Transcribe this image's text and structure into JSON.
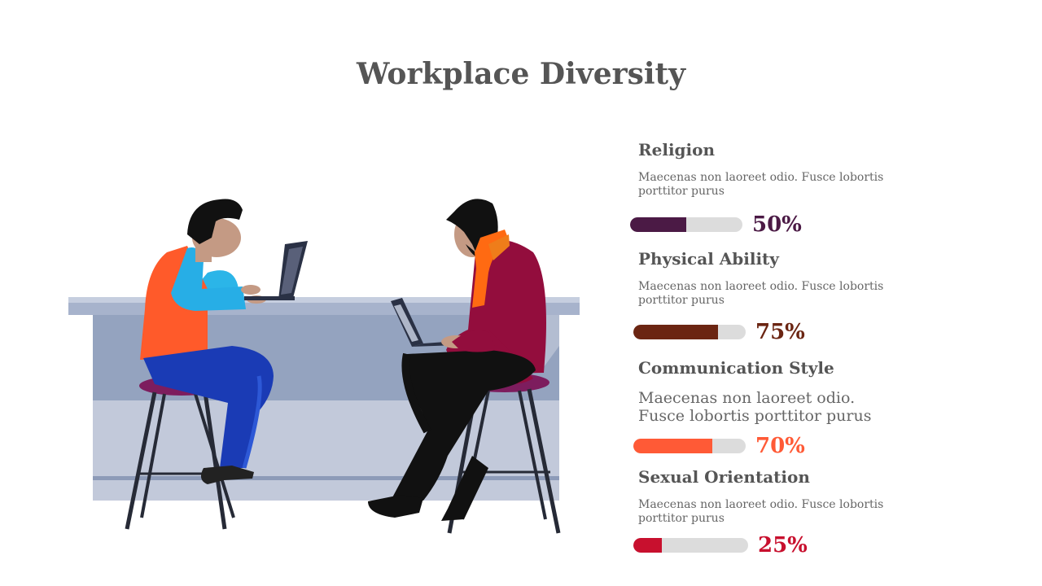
{
  "slide": {
    "title": "Workplace Diversity"
  },
  "items": [
    {
      "title": "Religion",
      "description": "Maecenas non laoreet odio. Fusce lobortis porttitor purus",
      "percent_label": "50%",
      "value": 0.5,
      "color": "#4b1a45"
    },
    {
      "title": "Physical Ability",
      "description": "Maecenas non laoreet odio. Fusce lobortis porttitor purus",
      "percent_label": "75%",
      "value": 0.75,
      "color": "#6b2512"
    },
    {
      "title": "Communication Style",
      "description": "Maecenas non laoreet odio. Fusce lobortis porttitor purus",
      "percent_label": "70%",
      "value": 0.7,
      "color": "#ff5a36"
    },
    {
      "title": "Sexual Orientation",
      "description": "Maecenas non laoreet odio. Fusce lobortis porttitor purus",
      "percent_label": "25%",
      "value": 0.25,
      "color": "#c8102e"
    }
  ]
}
